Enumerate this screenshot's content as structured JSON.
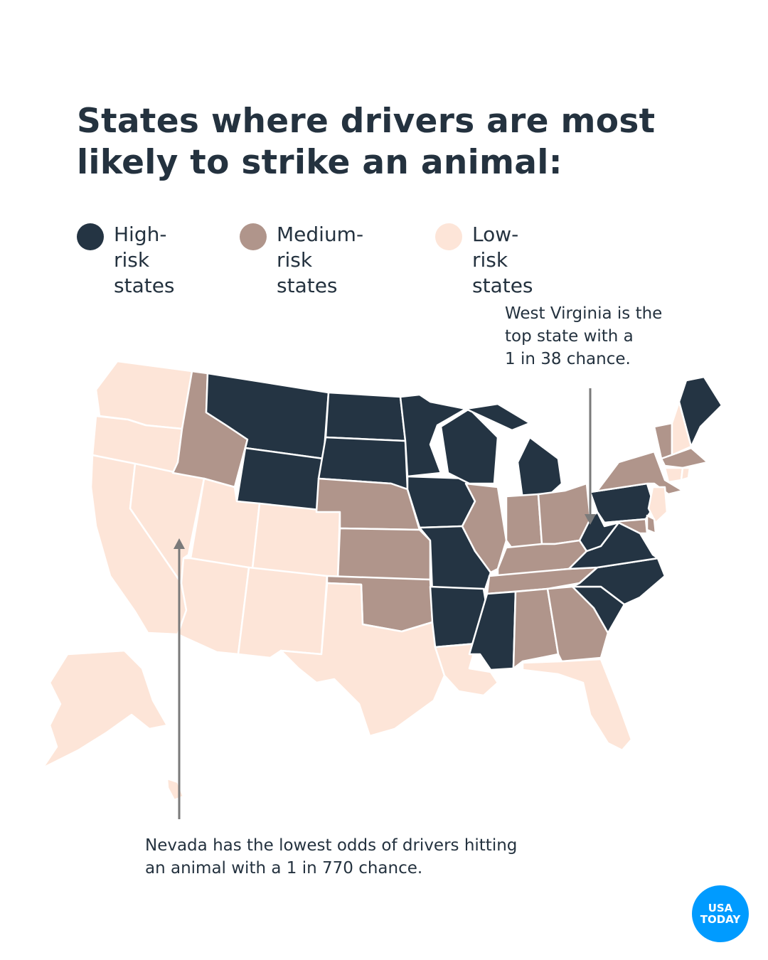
{
  "title": "States where drivers are most likely to strike an animal:",
  "legend": [
    {
      "label": "High-risk\nstates",
      "color": "#243443"
    },
    {
      "label": "Medium-risk\nstates",
      "color": "#b0958b"
    },
    {
      "label": "Low-risk\nstates",
      "color": "#fde5d8"
    }
  ],
  "annotations": {
    "west_virginia": "West Virginia is the\ntop state with a\n1 in 38 chance.",
    "nevada": "Nevada has the lowest odds of drivers hitting\nan animal with a 1 in 770 chance."
  },
  "states": {
    "high": [
      "MT",
      "WY",
      "ND",
      "SD",
      "MN",
      "IA",
      "MO",
      "AR",
      "MS",
      "WI",
      "MI",
      "PA",
      "WV",
      "VA",
      "NC",
      "SC",
      "ME"
    ],
    "medium": [
      "ID",
      "NE",
      "KS",
      "OK",
      "IL",
      "IN",
      "OH",
      "KY",
      "TN",
      "AL",
      "GA",
      "NY",
      "VT",
      "MA",
      "MD",
      "DE"
    ],
    "low": [
      "WA",
      "OR",
      "CA",
      "NV",
      "UT",
      "CO",
      "AZ",
      "NM",
      "TX",
      "LA",
      "FL",
      "NH",
      "CT",
      "RI",
      "NJ",
      "AK",
      "HI"
    ]
  },
  "badge": {
    "line1": "USA",
    "line2": "TODAY"
  }
}
